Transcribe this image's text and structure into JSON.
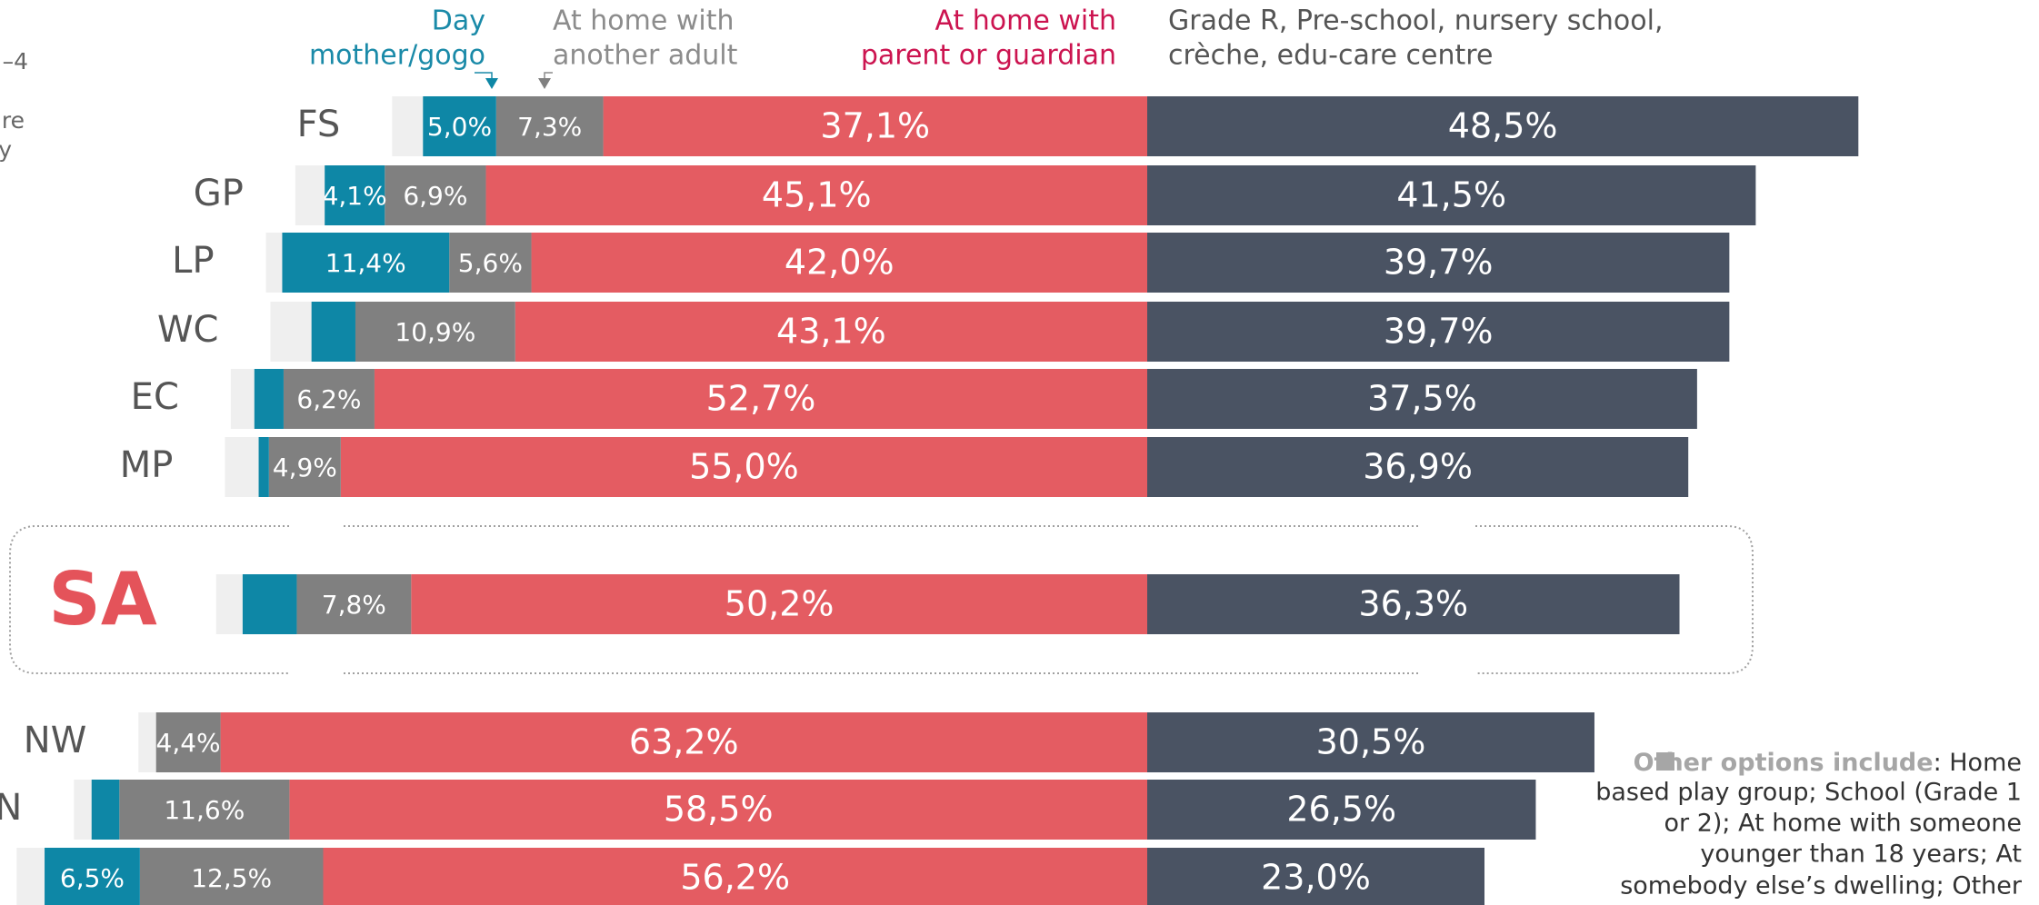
{
  "chart_data": {
    "type": "diverging_stacked_bar",
    "categories": [
      "FS",
      "GP",
      "LP",
      "WC",
      "EC",
      "MP",
      "SA",
      "NW",
      "N",
      null
    ],
    "highlight": "SA",
    "series": [
      {
        "color": "#efefef",
        "values": [
          2.1,
          2.0,
          1.1,
          2.8,
          1.6,
          2.3,
          1.8,
          1.2,
          1.2,
          1.9
        ]
      },
      {
        "name": [
          "Day",
          "mother/gogo"
        ],
        "color": "#0e87a6",
        "label_color": "#1a8aa8",
        "values": [
          5.0,
          4.1,
          11.4,
          3.0,
          2.0,
          0.7,
          3.7,
          0,
          1.9,
          6.5
        ],
        "value_labels": [
          "5,0%",
          "4,1%",
          "11,4%",
          null,
          null,
          null,
          null,
          null,
          null,
          "6,5%"
        ]
      },
      {
        "name": [
          "At home with",
          "another adult"
        ],
        "color": "#808080",
        "label_color": "#8c8c8c",
        "values": [
          7.3,
          6.9,
          5.6,
          10.9,
          6.2,
          4.9,
          7.8,
          4.4,
          11.6,
          12.5
        ],
        "value_labels": [
          "7,3%",
          "6,9%",
          "5,6%",
          "10,9%",
          "6,2%",
          "4,9%",
          "7,8%",
          "4,4%",
          "11,6%",
          "12,5%"
        ]
      },
      {
        "name": [
          "At home with",
          "parent or guardian"
        ],
        "color": "#e45c62",
        "label_color": "#cc1450",
        "values": [
          37.1,
          45.1,
          42.0,
          43.1,
          52.7,
          55.0,
          50.2,
          63.2,
          58.5,
          56.2
        ],
        "value_labels": [
          "37,1%",
          "45,1%",
          "42,0%",
          "43,1%",
          "52,7%",
          "55,0%",
          "50,2%",
          "63,2%",
          "58,5%",
          "56,2%"
        ]
      },
      {
        "name": [
          "Grade R, Pre-school, nursery school,",
          "crèche, edu-care centre"
        ],
        "color": "#4a5363",
        "label_color": "#555555",
        "values": [
          48.5,
          41.5,
          39.7,
          39.7,
          37.5,
          36.9,
          36.3,
          30.5,
          26.5,
          23.0
        ],
        "value_labels": [
          "48,5%",
          "41,5%",
          "39,7%",
          "39,7%",
          "37,5%",
          "36,9%",
          "36,3%",
          "30,5%",
          "26,5%",
          "23,0%"
        ]
      }
    ],
    "left_fragments": [
      "–4",
      "are",
      "y"
    ],
    "footnote": {
      "lead": "Other options include",
      "lines": [
        ": Home",
        "based play group; School (Grade 1",
        "or 2); At home with someone",
        "younger than 18 years; At",
        "somebody else’s dwelling; Other"
      ]
    }
  }
}
